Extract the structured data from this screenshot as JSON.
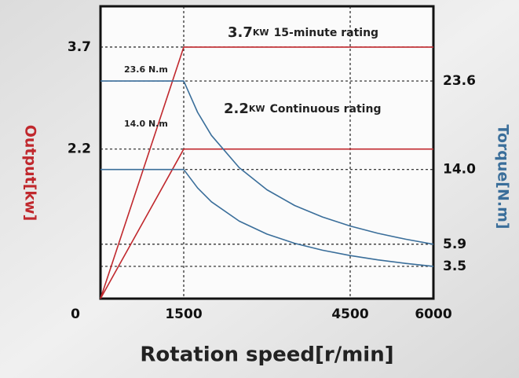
{
  "chart_data": {
    "type": "line",
    "x_label": "Rotation speed[r/min]",
    "y_label": "Output[kw]",
    "y2_label": "Torque[N.m]",
    "x": [
      0,
      1500,
      1750,
      2000,
      2500,
      3000,
      3500,
      4000,
      4500,
      5000,
      5500,
      6000
    ],
    "series": [
      {
        "color": "#c0282d",
        "values": [
          0,
          3.7,
          3.7,
          3.7,
          3.7,
          3.7,
          3.7,
          3.7,
          3.7,
          3.7,
          3.7,
          3.7
        ]
      },
      {
        "color": "#c0282d",
        "values": [
          0,
          2.2,
          2.2,
          2.2,
          2.2,
          2.2,
          2.2,
          2.2,
          2.2,
          2.2,
          2.2,
          2.2
        ]
      },
      {
        "color": "#3a6e9a",
        "axis": "y2",
        "values": [
          23.6,
          23.6,
          20.2,
          17.7,
          14.2,
          11.8,
          10.1,
          8.85,
          7.87,
          7.08,
          6.44,
          5.9
        ]
      },
      {
        "color": "#3a6e9a",
        "axis": "y2",
        "values": [
          14.0,
          14.0,
          12.0,
          10.5,
          8.4,
          7.0,
          6.0,
          5.25,
          4.67,
          4.2,
          3.82,
          3.5
        ]
      }
    ],
    "xlim": [
      0,
      6000
    ],
    "xticks": [
      0,
      1500,
      4500,
      6000
    ],
    "ylim": [
      0,
      4.3
    ],
    "yticks": [
      0,
      2.2,
      3.7
    ],
    "y2lim": [
      0,
      31.7
    ],
    "y2ticks": [
      {
        "value": 23.6,
        "label": "23.6"
      },
      {
        "value": 14.0,
        "label": "14.0"
      },
      {
        "value": 5.9,
        "label": "5.9"
      },
      {
        "value": 3.5,
        "label": "3.5"
      }
    ],
    "grid": true,
    "annotations": [
      {
        "value": "3.7",
        "unit": "KW",
        "text": "15-minute rating"
      },
      {
        "value": "2.2",
        "unit": "KW",
        "text": "Continuous rating"
      },
      {
        "text": "23.6 N.m"
      },
      {
        "text": "14.0 N.m"
      }
    ]
  }
}
